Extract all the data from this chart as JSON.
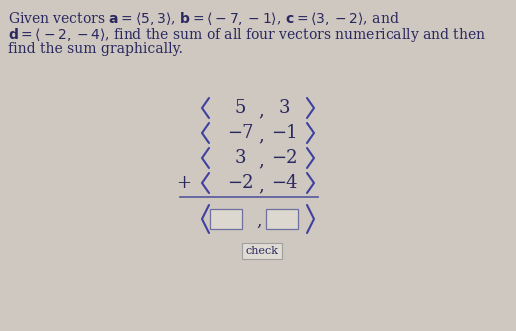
{
  "background_color": "#cec8c0",
  "text_color": "#2a2860",
  "bracket_color": "#4040a0",
  "line_color": "#6060a0",
  "box_fill_color": "#dcd8d0",
  "box_edge_color": "#7070a0",
  "button_fill_color": "#e0dcd4",
  "button_edge_color": "#a0a0a0",
  "check_text": "check",
  "rows": [
    {
      "prefix": "",
      "xval": "5",
      "yval": "3"
    },
    {
      "prefix": "",
      "xval": "−7",
      "yval": "−1"
    },
    {
      "prefix": "",
      "xval": "3",
      "yval": "−2"
    },
    {
      "prefix": "+",
      "xval": "−2",
      "yval": "−4"
    }
  ],
  "header_bold_parts": [
    "a",
    "b",
    "c",
    "d"
  ],
  "fig_w": 5.16,
  "fig_h": 3.31,
  "dpi": 100
}
